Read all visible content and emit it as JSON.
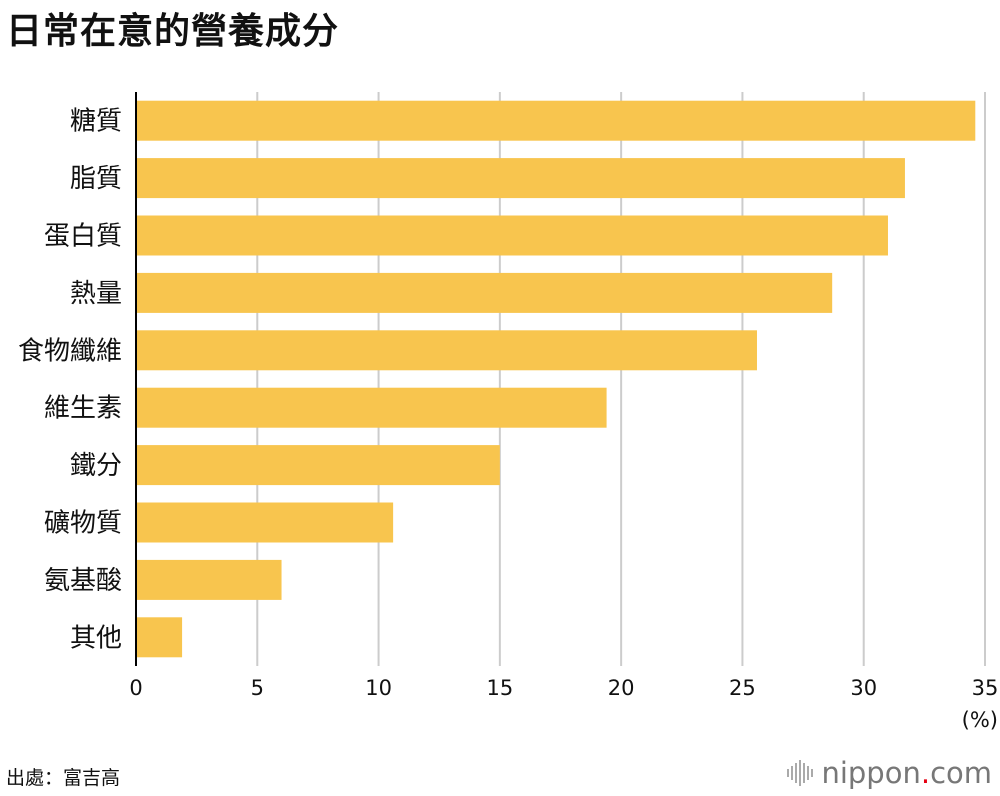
{
  "title": "日常在意的營養成分",
  "source": "出處：富吉高",
  "brand": {
    "name": "nippon",
    "dot": ".",
    "tld": "com",
    "icon": "sound-wave-icon"
  },
  "colors": {
    "bar": "#F8C54E",
    "grid": "#CCCCCC",
    "axis": "#000000",
    "brand_dot": "#E60012"
  },
  "chart_data": {
    "type": "bar",
    "orientation": "horizontal",
    "title": "日常在意的營養成分",
    "categories": [
      "糖質",
      "脂質",
      "蛋白質",
      "熱量",
      "食物纖維",
      "維生素",
      "鐵分",
      "礦物質",
      "氨基酸",
      "其他"
    ],
    "values": [
      34.6,
      31.7,
      31.0,
      28.7,
      25.6,
      19.4,
      15.0,
      10.6,
      6.0,
      1.9
    ],
    "xlim": [
      0,
      35
    ],
    "xticks": [
      "0",
      "5",
      "10",
      "15",
      "20",
      "25",
      "30",
      "35"
    ],
    "xunit": "(%)",
    "grid": true
  }
}
